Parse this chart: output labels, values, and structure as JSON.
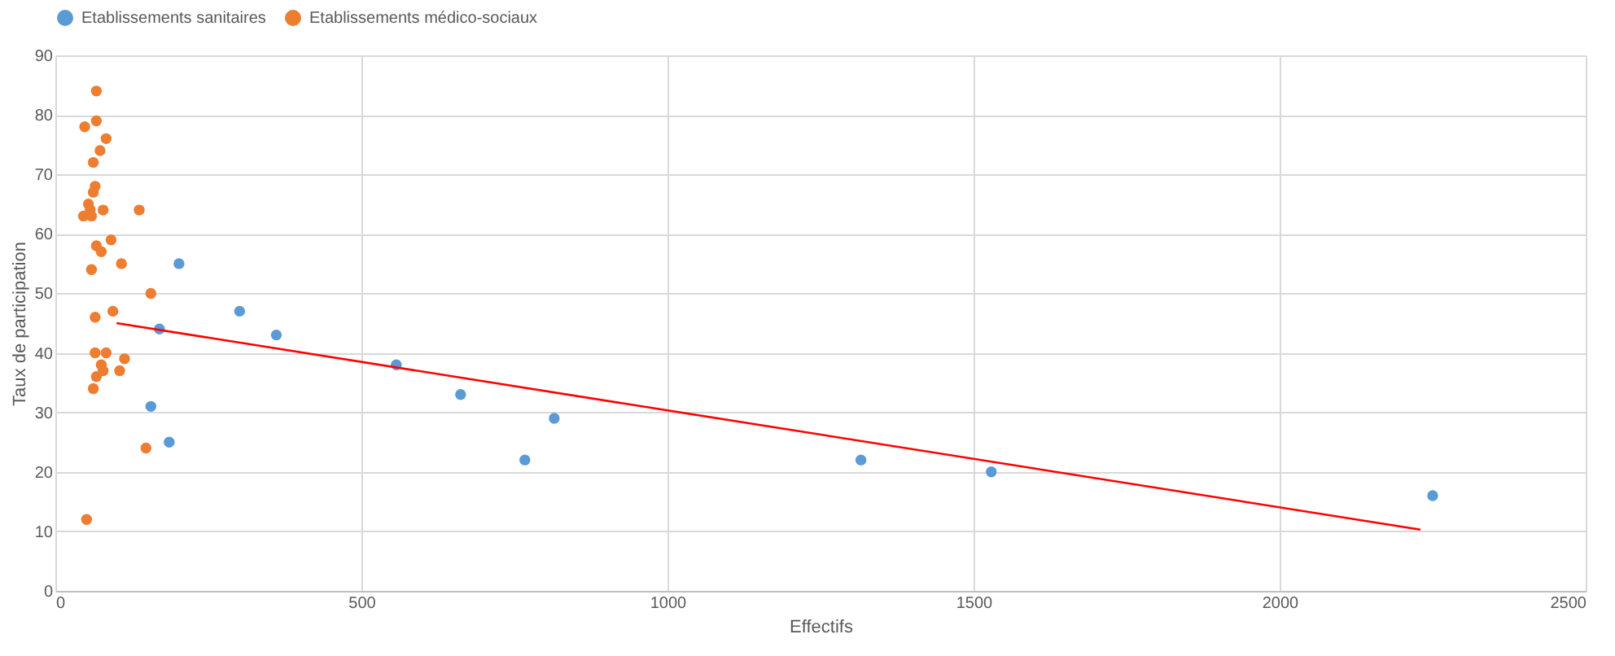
{
  "chart_data": {
    "type": "scatter",
    "xlabel": "Effectifs",
    "ylabel": "Taux de participation",
    "xlim": [
      0,
      2500
    ],
    "ylim": [
      0,
      90
    ],
    "xticks": [
      0,
      500,
      1000,
      1500,
      2000,
      2500
    ],
    "yticks": [
      0,
      10,
      20,
      30,
      40,
      50,
      60,
      70,
      80,
      90
    ],
    "grid": true,
    "legend": "top",
    "marker": "circle",
    "series": [
      {
        "name": "Etablissements sanitaires",
        "color": "#5b9bd5",
        "x": [
          202,
          170,
          301,
          361,
          156,
          186,
          557,
          662,
          815,
          767,
          1316,
          1529,
          2250
        ],
        "values": [
          55,
          44,
          47,
          43,
          31,
          25,
          38,
          33,
          29,
          22,
          22,
          20,
          16
        ]
      },
      {
        "name": "Etablissements médico-sociaux",
        "color": "#ed7d31",
        "x": [
          67,
          48,
          67,
          83,
          73,
          62,
          65,
          62,
          54,
          57,
          46,
          59,
          78,
          137,
          91,
          67,
          75,
          59,
          108,
          156,
          65,
          94,
          65,
          83,
          75,
          113,
          78,
          105,
          67,
          62,
          148,
          51
        ],
        "values": [
          84,
          78,
          79,
          76,
          74,
          72,
          68,
          67,
          65,
          64,
          63,
          63,
          64,
          64,
          59,
          58,
          57,
          54,
          55,
          50,
          46,
          47,
          40,
          40,
          38,
          39,
          37,
          37,
          36,
          34,
          24,
          12
        ]
      },
      {
        "type": "line",
        "color": "#ff0000",
        "x": [
          100,
          2230
        ],
        "values": [
          45,
          10.3
        ],
        "line_style": "solid",
        "marker": "none"
      }
    ]
  }
}
